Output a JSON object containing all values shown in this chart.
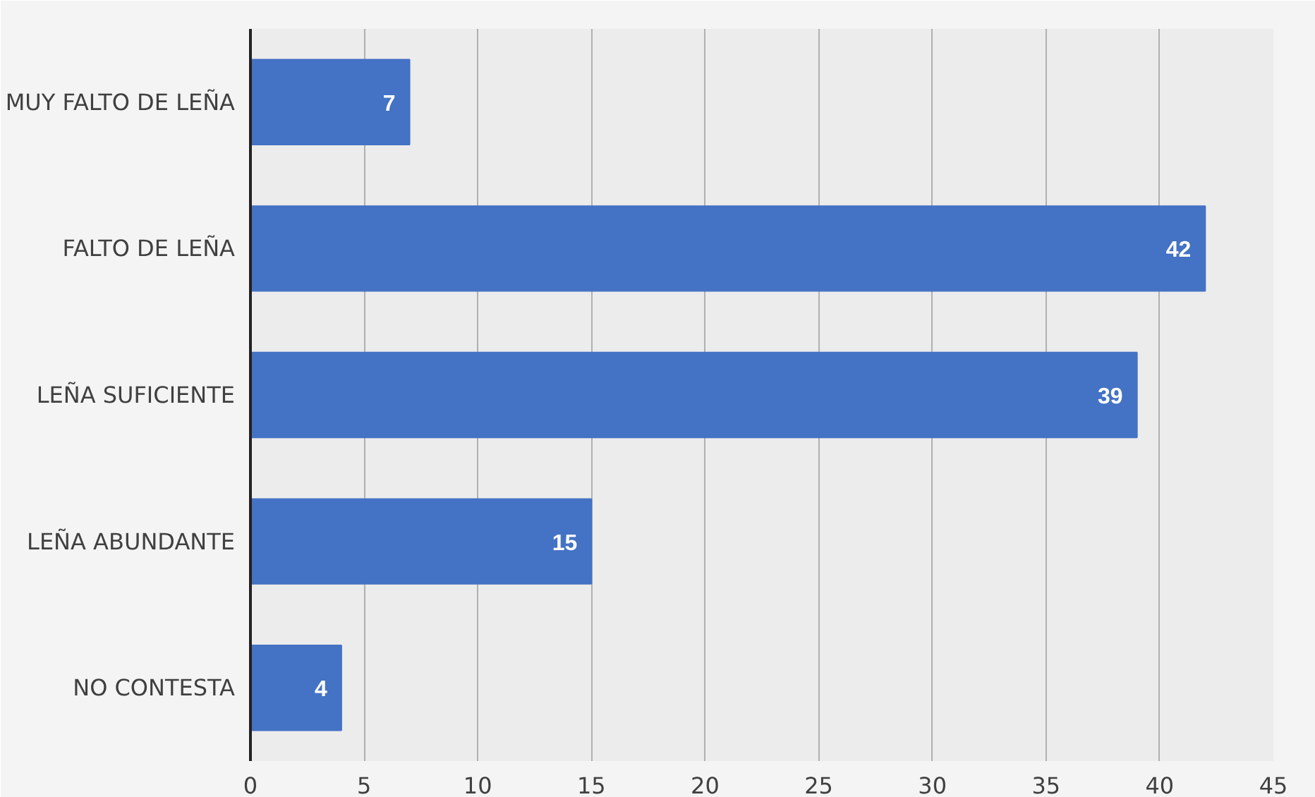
{
  "chart_data": {
    "type": "bar",
    "orientation": "horizontal",
    "categories": [
      "MUY FALTO DE LEÑA",
      "FALTO DE LEÑA",
      "LEÑA SUFICIENTE",
      "LEÑA ABUNDANTE",
      "NO CONTESTA"
    ],
    "values": [
      7,
      42,
      39,
      15,
      4
    ],
    "color": "#4472c4",
    "xlim": [
      0,
      45
    ],
    "xticks": [
      0,
      5,
      10,
      15,
      20,
      25,
      30,
      35,
      40,
      45
    ],
    "grid": "x",
    "data_labels": true
  }
}
